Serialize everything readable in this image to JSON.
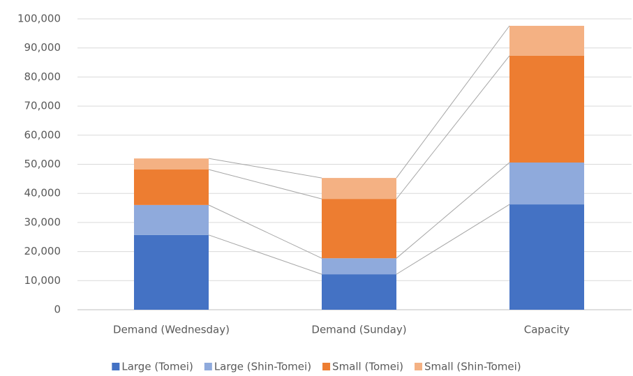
{
  "chart_data": {
    "type": "stacked_bar",
    "categories": [
      "Demand (Wednesday)",
      "Demand (Sunday)",
      "Capacity"
    ],
    "series": [
      {
        "name": "Large (Tomei)",
        "color": "#4472c4",
        "values": [
          25700,
          12200,
          36200
        ]
      },
      {
        "name": "Large (Shin-Tomei)",
        "color": "#8faadc",
        "values": [
          10300,
          5500,
          14400
        ]
      },
      {
        "name": "Small (Tomei)",
        "color": "#ed7d31",
        "values": [
          12200,
          20400,
          36700
        ]
      },
      {
        "name": "Small (Shin-Tomei)",
        "color": "#f4b183",
        "values": [
          3800,
          7200,
          10300
        ]
      }
    ],
    "ylim": [
      0,
      100000
    ],
    "yticks": [
      0,
      {
        "value": 10000,
        "label": "10,000"
      },
      {
        "value": 20000,
        "label": "20,000"
      },
      {
        "value": 30000,
        "label": "30,000"
      },
      {
        "value": 40000,
        "label": "40,000"
      },
      {
        "value": 50000,
        "label": "50,000"
      },
      {
        "value": 60000,
        "label": "60,000"
      },
      {
        "value": 70000,
        "label": "70,000"
      },
      {
        "value": 80000,
        "label": "80,000"
      },
      {
        "value": 90000,
        "label": "90,000"
      },
      {
        "value": 100000,
        "label": "100,000"
      }
    ],
    "grid": true,
    "series_lines": true,
    "legend": "bottom"
  }
}
